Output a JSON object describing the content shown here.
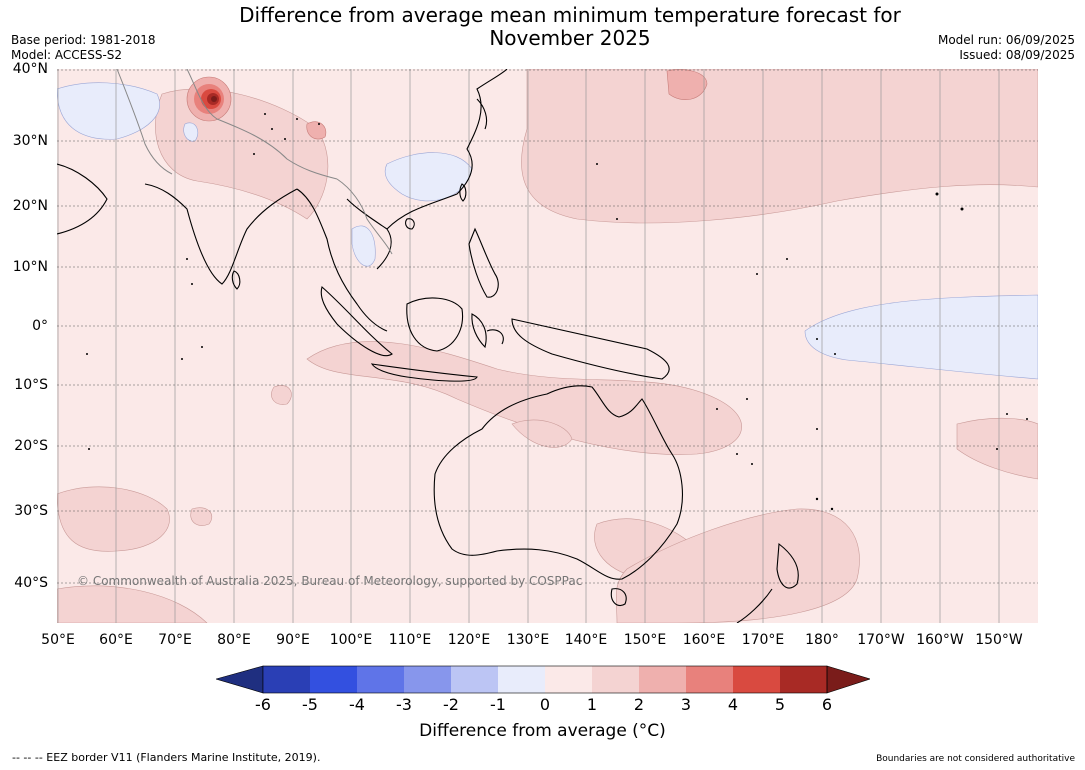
{
  "title_line1": "Difference from average mean minimum temperature forecast for",
  "title_line2": "November 2025",
  "base_period": "Base period: 1981-2018",
  "model": "Model: ACCESS-S2",
  "model_run": "Model run: 06/09/2025",
  "issued": "Issued: 08/09/2025",
  "lat_labels": [
    "40°N",
    "30°N",
    "20°N",
    "10°N",
    "0°",
    "10°S",
    "20°S",
    "30°S",
    "40°S"
  ],
  "lon_labels": [
    "50°E",
    "60°E",
    "70°E",
    "80°E",
    "90°E",
    "100°E",
    "110°E",
    "120°E",
    "130°E",
    "140°E",
    "150°E",
    "160°E",
    "170°E",
    "180°",
    "170°W",
    "160°W",
    "150°W"
  ],
  "copyright": "© Commonwealth of Australia 2025, Bureau of Meteorology, supported by COSPPac",
  "colorbar": {
    "ticks": [
      "-6",
      "-5",
      "-4",
      "-3",
      "-2",
      "-1",
      "0",
      "1",
      "2",
      "3",
      "4",
      "5",
      "6"
    ],
    "colors": [
      "#1f2f80",
      "#2a3fb5",
      "#3350e0",
      "#5f74e8",
      "#8796ec",
      "#bcc5f4",
      "#e8ecfb",
      "#fbe9e8",
      "#f4d3d2",
      "#efb0ae",
      "#e8817c",
      "#d94a40",
      "#a82a25",
      "#7a1c1a"
    ],
    "title": "Difference from average (°C)"
  },
  "footer_left": "-- -- -- EEZ border V11 (Flanders Marine Institute, 2019).",
  "footer_right": "Boundaries are not considered authoritative"
}
